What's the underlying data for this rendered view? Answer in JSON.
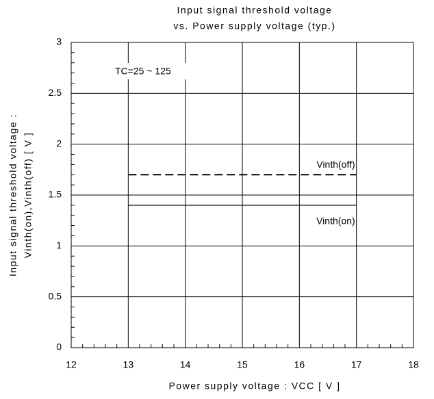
{
  "chart_data": {
    "type": "line",
    "title": [
      "Input signal threshold voltage",
      "vs. Power supply voltage (typ.)"
    ],
    "x_label": "Power supply voltage : VCC [ V ]",
    "y_label": [
      "Input signal threshold voltage :",
      "Vinth(on),Vinth(off) [ V ]"
    ],
    "annotations": [
      "TC=25 ~ 125"
    ],
    "x": [
      13,
      17
    ],
    "series": [
      {
        "name": "Vinth(off)",
        "color": "#000000",
        "dashed": true,
        "values": [
          1.7,
          1.7
        ]
      },
      {
        "name": "Vinth(on)",
        "color": "#000000",
        "dashed": false,
        "values": [
          1.4,
          1.4
        ]
      }
    ],
    "xlim": [
      12,
      18
    ],
    "xticks": [
      12,
      13,
      14,
      15,
      16,
      17,
      18
    ],
    "ylim": [
      0,
      3
    ],
    "yticks": [
      0,
      0.5,
      1,
      1.5,
      2,
      2.5,
      3
    ],
    "minor_subdivisions": {
      "x": 5,
      "y": 5
    },
    "grid": true
  }
}
